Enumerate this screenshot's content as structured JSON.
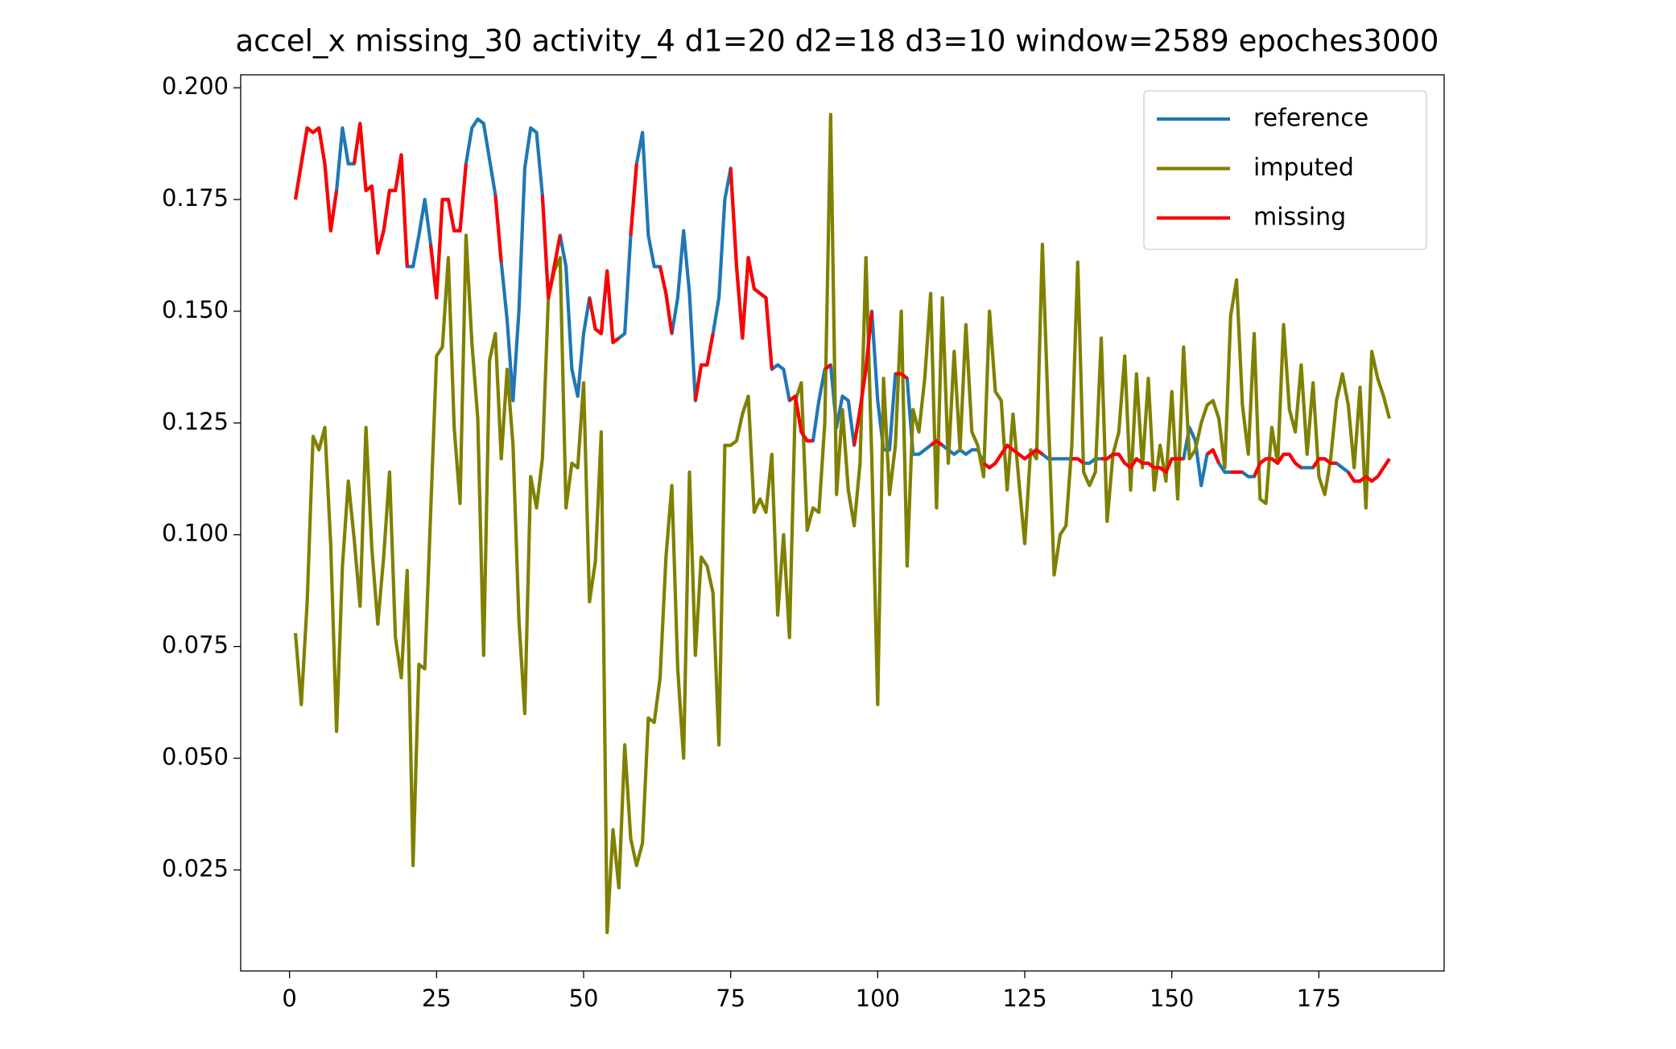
{
  "chart_data": {
    "type": "line",
    "title": "accel_x missing_30 activity_4 d1=20 d2=18 d3=10 window=2589 epoches3000",
    "x": [
      1,
      2,
      3,
      4,
      5,
      6,
      7,
      8,
      9,
      10,
      11,
      12,
      13,
      14,
      15,
      16,
      17,
      18,
      19,
      20,
      21,
      22,
      23,
      24,
      25,
      26,
      27,
      28,
      29,
      30,
      31,
      32,
      33,
      34,
      35,
      36,
      37,
      38,
      39,
      40,
      41,
      42,
      43,
      44,
      45,
      46,
      47,
      48,
      49,
      50,
      51,
      52,
      53,
      54,
      55,
      56,
      57,
      58,
      59,
      60,
      61,
      62,
      63,
      64,
      65,
      66,
      67,
      68,
      69,
      70,
      71,
      72,
      73,
      74,
      75,
      76,
      77,
      78,
      79,
      80,
      81,
      82,
      83,
      84,
      85,
      86,
      87,
      88,
      89,
      90,
      91,
      92,
      93,
      94,
      95,
      96,
      97,
      98,
      99,
      100,
      101,
      102,
      103,
      104,
      105,
      106,
      107,
      108,
      109,
      110,
      111,
      112,
      113,
      114,
      115,
      116,
      117,
      118,
      119,
      120,
      121,
      122,
      123,
      124,
      125,
      126,
      127,
      128,
      129,
      130,
      131,
      132,
      133,
      134,
      135,
      136,
      137,
      138,
      139,
      140,
      141,
      142,
      143,
      144,
      145,
      146,
      147,
      148,
      149,
      150,
      151,
      152,
      153,
      154,
      155,
      156,
      157,
      158,
      159,
      160,
      161,
      162,
      163,
      164,
      165,
      166,
      167,
      168,
      169,
      170,
      171,
      172,
      173,
      174,
      175,
      176,
      177,
      178,
      179,
      180,
      181,
      182,
      183,
      184,
      185,
      186,
      187
    ],
    "series": [
      {
        "name": "reference",
        "color": "#1f77b4",
        "values": [
          0.175,
          0.183,
          0.191,
          0.19,
          0.191,
          0.183,
          0.168,
          0.177,
          0.191,
          0.183,
          0.183,
          0.192,
          0.177,
          0.178,
          0.163,
          0.168,
          0.177,
          0.177,
          0.185,
          0.16,
          0.16,
          0.167,
          0.175,
          0.165,
          0.153,
          0.175,
          0.175,
          0.168,
          0.168,
          0.183,
          0.191,
          0.193,
          0.192,
          0.184,
          0.176,
          0.161,
          0.148,
          0.13,
          0.15,
          0.182,
          0.191,
          0.19,
          0.176,
          0.153,
          0.16,
          0.167,
          0.16,
          0.137,
          0.131,
          0.145,
          0.153,
          0.146,
          0.145,
          0.159,
          0.143,
          0.144,
          0.145,
          0.167,
          0.183,
          0.19,
          0.167,
          0.16,
          0.16,
          0.154,
          0.145,
          0.153,
          0.168,
          0.154,
          0.13,
          0.138,
          0.138,
          0.145,
          0.153,
          0.175,
          0.182,
          0.16,
          0.144,
          0.162,
          0.155,
          0.154,
          0.153,
          0.137,
          0.138,
          0.137,
          0.13,
          0.131,
          0.123,
          0.121,
          0.121,
          0.13,
          0.137,
          0.138,
          0.124,
          0.131,
          0.13,
          0.12,
          0.128,
          0.137,
          0.15,
          0.13,
          0.119,
          0.119,
          0.136,
          0.136,
          0.135,
          0.118,
          0.118,
          0.119,
          0.12,
          0.121,
          0.12,
          0.119,
          0.118,
          0.119,
          0.118,
          0.119,
          0.119,
          0.116,
          0.115,
          0.116,
          0.118,
          0.12,
          0.119,
          0.118,
          0.117,
          0.118,
          0.119,
          0.118,
          0.117,
          0.117,
          0.117,
          0.117,
          0.117,
          0.117,
          0.116,
          0.116,
          0.117,
          0.117,
          0.117,
          0.118,
          0.118,
          0.116,
          0.115,
          0.117,
          0.116,
          0.116,
          0.115,
          0.115,
          0.114,
          0.117,
          0.117,
          0.117,
          0.124,
          0.121,
          0.111,
          0.118,
          0.119,
          0.116,
          0.114,
          0.114,
          0.114,
          0.114,
          0.113,
          0.113,
          0.116,
          0.117,
          0.117,
          0.116,
          0.118,
          0.118,
          0.116,
          0.115,
          0.115,
          0.115,
          0.117,
          0.117,
          0.116,
          0.116,
          0.115,
          0.114,
          0.112,
          0.112,
          0.113,
          0.112,
          0.113,
          0.115,
          0.117
        ]
      },
      {
        "name": "imputed",
        "color": "#808000",
        "values": [
          0.078,
          0.062,
          0.085,
          0.122,
          0.119,
          0.124,
          0.098,
          0.056,
          0.093,
          0.112,
          0.099,
          0.084,
          0.124,
          0.097,
          0.08,
          0.095,
          0.114,
          0.077,
          0.068,
          0.092,
          0.026,
          0.071,
          0.07,
          0.105,
          0.14,
          0.142,
          0.162,
          0.124,
          0.107,
          0.167,
          0.143,
          0.126,
          0.073,
          0.139,
          0.145,
          0.117,
          0.137,
          0.12,
          0.081,
          0.06,
          0.113,
          0.106,
          0.117,
          0.153,
          0.159,
          0.162,
          0.106,
          0.116,
          0.115,
          0.134,
          0.085,
          0.094,
          0.123,
          0.011,
          0.034,
          0.021,
          0.053,
          0.032,
          0.026,
          0.031,
          0.059,
          0.058,
          0.068,
          0.095,
          0.111,
          0.07,
          0.05,
          0.114,
          0.073,
          0.095,
          0.093,
          0.087,
          0.053,
          0.12,
          0.12,
          0.121,
          0.127,
          0.131,
          0.105,
          0.108,
          0.105,
          0.118,
          0.082,
          0.1,
          0.077,
          0.13,
          0.134,
          0.101,
          0.106,
          0.105,
          0.125,
          0.194,
          0.109,
          0.128,
          0.11,
          0.102,
          0.116,
          0.162,
          0.117,
          0.062,
          0.135,
          0.109,
          0.12,
          0.15,
          0.093,
          0.128,
          0.123,
          0.135,
          0.154,
          0.106,
          0.153,
          0.116,
          0.141,
          0.119,
          0.147,
          0.123,
          0.12,
          0.113,
          0.15,
          0.132,
          0.13,
          0.11,
          0.127,
          0.112,
          0.098,
          0.119,
          0.117,
          0.165,
          0.127,
          0.091,
          0.1,
          0.102,
          0.12,
          0.161,
          0.114,
          0.111,
          0.114,
          0.144,
          0.103,
          0.118,
          0.123,
          0.14,
          0.11,
          0.136,
          0.115,
          0.135,
          0.11,
          0.12,
          0.112,
          0.132,
          0.108,
          0.142,
          0.117,
          0.119,
          0.125,
          0.129,
          0.13,
          0.126,
          0.115,
          0.149,
          0.157,
          0.129,
          0.118,
          0.145,
          0.108,
          0.107,
          0.124,
          0.116,
          0.147,
          0.128,
          0.123,
          0.138,
          0.118,
          0.134,
          0.113,
          0.109,
          0.117,
          0.13,
          0.136,
          0.129,
          0.115,
          0.133,
          0.106,
          0.141,
          0.135,
          0.131,
          0.126
        ]
      },
      {
        "name": "missing",
        "color": "#ff0000",
        "values": [
          0.175,
          0.183,
          0.191,
          0.19,
          0.191,
          0.183,
          0.168,
          0.177,
          null,
          null,
          0.183,
          0.192,
          0.177,
          0.178,
          0.163,
          0.168,
          0.177,
          0.177,
          0.185,
          0.16,
          null,
          null,
          null,
          0.165,
          0.153,
          0.175,
          0.175,
          0.168,
          0.168,
          0.183,
          null,
          null,
          null,
          null,
          0.176,
          0.161,
          null,
          null,
          null,
          null,
          null,
          null,
          0.176,
          0.153,
          0.16,
          0.167,
          null,
          null,
          null,
          null,
          0.153,
          0.146,
          0.145,
          0.159,
          0.143,
          0.144,
          null,
          0.167,
          0.183,
          null,
          null,
          null,
          0.16,
          0.154,
          0.145,
          null,
          null,
          null,
          0.13,
          0.138,
          0.138,
          0.145,
          null,
          null,
          0.182,
          0.16,
          0.144,
          0.162,
          0.155,
          0.154,
          0.153,
          0.137,
          null,
          null,
          0.13,
          0.131,
          0.123,
          0.121,
          0.121,
          null,
          0.137,
          0.138,
          null,
          null,
          null,
          0.12,
          0.128,
          0.137,
          0.15,
          null,
          null,
          null,
          0.136,
          0.136,
          0.135,
          null,
          null,
          null,
          0.12,
          0.121,
          0.12,
          null,
          null,
          null,
          null,
          null,
          null,
          0.116,
          0.115,
          0.116,
          0.118,
          0.12,
          0.119,
          0.118,
          0.117,
          0.118,
          0.119,
          0.118,
          null,
          null,
          null,
          null,
          0.117,
          0.117,
          0.116,
          null,
          null,
          0.117,
          0.117,
          0.118,
          0.118,
          0.116,
          0.115,
          0.117,
          0.116,
          0.116,
          0.115,
          0.115,
          0.114,
          0.117,
          0.117,
          0.117,
          null,
          null,
          null,
          0.118,
          0.119,
          0.116,
          null,
          0.114,
          0.114,
          0.114,
          null,
          0.113,
          0.116,
          0.117,
          0.117,
          0.116,
          0.118,
          0.118,
          0.116,
          0.115,
          null,
          0.115,
          0.117,
          0.117,
          0.116,
          0.116,
          null,
          0.114,
          0.112,
          0.112,
          0.113,
          0.112,
          0.113,
          0.115,
          0.117
        ]
      }
    ],
    "xlim": [
      -8.3,
      196.3
    ],
    "xticks": [
      0,
      25,
      50,
      75,
      100,
      125,
      150,
      175
    ],
    "ylim": [
      0.0024,
      0.2029
    ],
    "yticks": [
      0.025,
      {
        "value": 0.05,
        "label": "0.050"
      },
      0.075,
      {
        "value": 0.1,
        "label": "0.100"
      },
      0.125,
      {
        "value": 0.15,
        "label": "0.150"
      },
      0.175,
      {
        "value": 0.2,
        "label": "0.200"
      }
    ],
    "legend": "upper right"
  }
}
